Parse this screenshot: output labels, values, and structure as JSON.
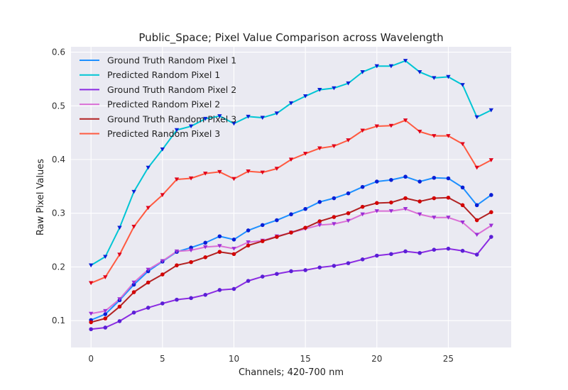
{
  "chart_data": {
    "type": "line",
    "title": "Public_Space; Pixel Value Comparison across Wavelength",
    "xlabel": "Channels; 420-700 nm",
    "ylabel": "Raw Pixel Values",
    "xlim": [
      -1.4,
      29.4
    ],
    "ylim": [
      0.05,
      0.61
    ],
    "xticks": [
      0,
      5,
      10,
      15,
      20,
      25
    ],
    "yticks": [
      0.1,
      0.2,
      0.3,
      0.4,
      0.5,
      0.6
    ],
    "grid": true,
    "legend_position": "upper-left",
    "x": [
      0,
      1,
      2,
      3,
      4,
      5,
      6,
      7,
      8,
      9,
      10,
      11,
      12,
      13,
      14,
      15,
      16,
      17,
      18,
      19,
      20,
      21,
      22,
      23,
      24,
      25,
      26,
      27,
      28
    ],
    "series": [
      {
        "name": "Ground Truth Random Pixel 1",
        "color": "#1e90ff",
        "marker_color": "#0a1fd6",
        "marker": "circle",
        "values": [
          0.101,
          0.112,
          0.138,
          0.167,
          0.192,
          0.21,
          0.228,
          0.236,
          0.245,
          0.257,
          0.251,
          0.268,
          0.278,
          0.287,
          0.298,
          0.308,
          0.321,
          0.328,
          0.337,
          0.349,
          0.359,
          0.362,
          0.368,
          0.359,
          0.366,
          0.365,
          0.348,
          0.315,
          0.334
        ]
      },
      {
        "name": "Predicted Random Pixel 1",
        "color": "#00c5d4",
        "marker_color": "#0a1fd6",
        "marker": "triangle-down",
        "values": [
          0.203,
          0.219,
          0.273,
          0.34,
          0.385,
          0.419,
          0.455,
          0.462,
          0.476,
          0.481,
          0.467,
          0.48,
          0.478,
          0.486,
          0.505,
          0.518,
          0.53,
          0.533,
          0.542,
          0.563,
          0.574,
          0.574,
          0.584,
          0.563,
          0.552,
          0.554,
          0.539,
          0.479,
          0.492
        ]
      },
      {
        "name": "Ground Truth Random Pixel 2",
        "color": "#8a2be2",
        "marker_color": "#5a1fd6",
        "marker": "circle",
        "values": [
          0.084,
          0.087,
          0.099,
          0.115,
          0.124,
          0.132,
          0.139,
          0.142,
          0.148,
          0.157,
          0.159,
          0.174,
          0.182,
          0.187,
          0.192,
          0.194,
          0.199,
          0.202,
          0.207,
          0.214,
          0.221,
          0.224,
          0.229,
          0.226,
          0.232,
          0.234,
          0.23,
          0.223,
          0.256
        ]
      },
      {
        "name": "Predicted Random Pixel 2",
        "color": "#da70d6",
        "marker_color": "#9b2fd6",
        "marker": "triangle-down",
        "values": [
          0.113,
          0.118,
          0.14,
          0.171,
          0.195,
          0.211,
          0.229,
          0.231,
          0.237,
          0.239,
          0.234,
          0.246,
          0.249,
          0.257,
          0.264,
          0.271,
          0.278,
          0.28,
          0.286,
          0.298,
          0.304,
          0.304,
          0.308,
          0.298,
          0.292,
          0.292,
          0.283,
          0.26,
          0.277
        ]
      },
      {
        "name": "Ground Truth Random Pixel 3",
        "color": "#b22222",
        "marker_color": "#d40000",
        "marker": "circle",
        "values": [
          0.097,
          0.104,
          0.126,
          0.153,
          0.171,
          0.186,
          0.203,
          0.209,
          0.218,
          0.228,
          0.224,
          0.24,
          0.248,
          0.256,
          0.264,
          0.273,
          0.285,
          0.293,
          0.3,
          0.312,
          0.319,
          0.32,
          0.328,
          0.322,
          0.328,
          0.329,
          0.315,
          0.287,
          0.302
        ]
      },
      {
        "name": "Predicted Random Pixel 3",
        "color": "#ff5a40",
        "marker_color": "#e0001a",
        "marker": "triangle-down",
        "values": [
          0.17,
          0.181,
          0.223,
          0.275,
          0.31,
          0.334,
          0.363,
          0.365,
          0.374,
          0.377,
          0.364,
          0.378,
          0.376,
          0.383,
          0.4,
          0.411,
          0.421,
          0.425,
          0.436,
          0.454,
          0.462,
          0.463,
          0.473,
          0.452,
          0.444,
          0.444,
          0.429,
          0.385,
          0.399
        ]
      }
    ]
  }
}
